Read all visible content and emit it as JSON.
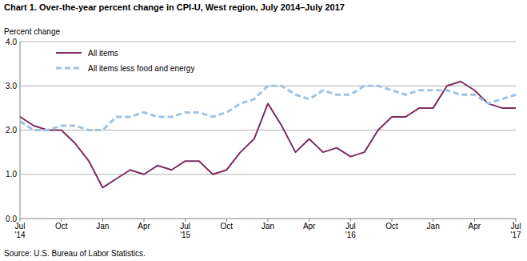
{
  "chart_data": {
    "type": "line",
    "title": "Chart 1. Over-the-year percent change in CPI-U, West region, July 2014–July 2017",
    "y_label": "Percent change",
    "source": "Source: U.S. Bureau of Labor Statistics.",
    "categories": [
      "Jul\n'14",
      null,
      null,
      "Oct",
      null,
      null,
      "Jan",
      null,
      null,
      "Apr",
      null,
      null,
      "Jul\n'15",
      null,
      null,
      "Oct",
      null,
      null,
      "Jan",
      null,
      null,
      "Apr",
      null,
      null,
      "Jul\n'16",
      null,
      null,
      "Oct",
      null,
      null,
      "Jan",
      null,
      null,
      "Apr",
      null,
      null,
      "Jul\n'17"
    ],
    "series": [
      {
        "name": "All items",
        "color": "#7d2e5f",
        "line_style": "solid",
        "values": [
          2.3,
          2.1,
          2.0,
          2.0,
          1.7,
          1.3,
          0.7,
          0.9,
          1.1,
          1.0,
          1.2,
          1.1,
          1.3,
          1.3,
          1.0,
          1.1,
          1.5,
          1.8,
          2.6,
          2.1,
          1.5,
          1.8,
          1.5,
          1.6,
          1.4,
          1.5,
          2.0,
          2.3,
          2.3,
          2.5,
          2.5,
          3.0,
          3.1,
          2.9,
          2.6,
          2.5,
          2.5
        ]
      },
      {
        "name": "All items less food and energy",
        "color": "#9dc3e6",
        "line_style": "dashed",
        "values": [
          2.2,
          2.0,
          2.0,
          2.1,
          2.1,
          2.0,
          2.0,
          2.3,
          2.3,
          2.4,
          2.3,
          2.3,
          2.4,
          2.4,
          2.3,
          2.4,
          2.6,
          2.7,
          3.0,
          3.0,
          2.8,
          2.7,
          2.9,
          2.8,
          2.8,
          3.0,
          3.0,
          2.9,
          2.8,
          2.9,
          2.9,
          2.9,
          2.8,
          2.8,
          2.6,
          2.7,
          2.8
        ]
      }
    ],
    "ylim": [
      0,
      4
    ],
    "yticks": [
      {
        "value": 0,
        "label": "0.0"
      },
      {
        "value": 1,
        "label": "1.0"
      },
      {
        "value": 2,
        "label": "2.0"
      },
      {
        "value": 3,
        "label": "3.0"
      },
      {
        "value": 4,
        "label": "4.0"
      }
    ],
    "grid": true,
    "legend": "upper left"
  }
}
